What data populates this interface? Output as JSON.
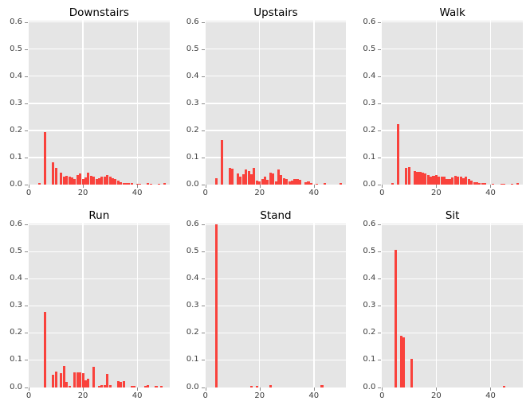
{
  "figure": {
    "background": "#ffffff",
    "axes_background": "#e5e5e5",
    "grid_color": "#ffffff",
    "bar_color": "#f9423c",
    "tick_label_color": "#3c3c3c",
    "title_color": "#000000"
  },
  "chart_data": [
    {
      "type": "bar",
      "title": "Downstairs",
      "xlabel": "",
      "ylabel": "",
      "xlim": [
        0,
        52
      ],
      "ylim": [
        0,
        0.605
      ],
      "grid": true,
      "legend": false,
      "bin_width": 1,
      "xticks": [
        {
          "value": 0,
          "label": "0"
        },
        {
          "value": 20,
          "label": "20"
        },
        {
          "value": 40,
          "label": "40"
        }
      ],
      "yticks": [
        {
          "value": 0.0,
          "label": "0.0"
        },
        {
          "value": 0.1,
          "label": "0.1"
        },
        {
          "value": 0.2,
          "label": "0.2"
        },
        {
          "value": 0.3,
          "label": "0.3"
        },
        {
          "value": 0.4,
          "label": "0.4"
        },
        {
          "value": 0.5,
          "label": "0.5"
        },
        {
          "value": 0.6,
          "label": "0.6"
        }
      ],
      "bars": [
        [
          4,
          0.006
        ],
        [
          6,
          0.195
        ],
        [
          9,
          0.083
        ],
        [
          10,
          0.062
        ],
        [
          12,
          0.045
        ],
        [
          13,
          0.03
        ],
        [
          14,
          0.031
        ],
        [
          15,
          0.028
        ],
        [
          16,
          0.026
        ],
        [
          17,
          0.02
        ],
        [
          18,
          0.035
        ],
        [
          19,
          0.042
        ],
        [
          20,
          0.02
        ],
        [
          21,
          0.026
        ],
        [
          22,
          0.044
        ],
        [
          23,
          0.033
        ],
        [
          24,
          0.028
        ],
        [
          25,
          0.02
        ],
        [
          26,
          0.024
        ],
        [
          27,
          0.029
        ],
        [
          28,
          0.03
        ],
        [
          29,
          0.035
        ],
        [
          30,
          0.03
        ],
        [
          31,
          0.024
        ],
        [
          32,
          0.02
        ],
        [
          33,
          0.014
        ],
        [
          34,
          0.01
        ],
        [
          35,
          0.007
        ],
        [
          36,
          0.006
        ],
        [
          37,
          0.005
        ],
        [
          38,
          0.005
        ],
        [
          40,
          0.004
        ],
        [
          41,
          0.004
        ],
        [
          44,
          0.005
        ],
        [
          45,
          0.003
        ],
        [
          48,
          0.004
        ],
        [
          50,
          0.006
        ]
      ]
    },
    {
      "type": "bar",
      "title": "Upstairs",
      "xlabel": "",
      "ylabel": "",
      "xlim": [
        0,
        52
      ],
      "ylim": [
        0,
        0.605
      ],
      "grid": true,
      "legend": false,
      "bin_width": 1,
      "xticks": [
        {
          "value": 0,
          "label": "0"
        },
        {
          "value": 20,
          "label": "20"
        },
        {
          "value": 40,
          "label": "40"
        }
      ],
      "yticks": [
        {
          "value": 0.0,
          "label": "0.0"
        },
        {
          "value": 0.1,
          "label": "0.1"
        },
        {
          "value": 0.2,
          "label": "0.2"
        },
        {
          "value": 0.3,
          "label": "0.3"
        },
        {
          "value": 0.4,
          "label": "0.4"
        },
        {
          "value": 0.5,
          "label": "0.5"
        },
        {
          "value": 0.6,
          "label": "0.6"
        }
      ],
      "bars": [
        [
          4,
          0.023
        ],
        [
          6,
          0.165
        ],
        [
          9,
          0.063
        ],
        [
          10,
          0.06
        ],
        [
          12,
          0.04
        ],
        [
          13,
          0.03
        ],
        [
          14,
          0.038
        ],
        [
          15,
          0.055
        ],
        [
          16,
          0.05
        ],
        [
          17,
          0.038
        ],
        [
          18,
          0.063
        ],
        [
          19,
          0.015
        ],
        [
          20,
          0.012
        ],
        [
          21,
          0.02
        ],
        [
          22,
          0.028
        ],
        [
          23,
          0.018
        ],
        [
          24,
          0.045
        ],
        [
          25,
          0.04
        ],
        [
          26,
          0.012
        ],
        [
          27,
          0.055
        ],
        [
          28,
          0.035
        ],
        [
          29,
          0.025
        ],
        [
          30,
          0.022
        ],
        [
          31,
          0.012
        ],
        [
          32,
          0.015
        ],
        [
          33,
          0.02
        ],
        [
          34,
          0.022
        ],
        [
          35,
          0.018
        ],
        [
          37,
          0.008
        ],
        [
          38,
          0.012
        ],
        [
          39,
          0.006
        ],
        [
          41,
          0.004
        ],
        [
          44,
          0.005
        ],
        [
          50,
          0.006
        ]
      ]
    },
    {
      "type": "bar",
      "title": "Walk",
      "xlabel": "",
      "ylabel": "",
      "xlim": [
        0,
        52
      ],
      "ylim": [
        0,
        0.605
      ],
      "grid": true,
      "legend": false,
      "bin_width": 1,
      "xticks": [
        {
          "value": 0,
          "label": "0"
        },
        {
          "value": 20,
          "label": "20"
        },
        {
          "value": 40,
          "label": "40"
        }
      ],
      "yticks": [
        {
          "value": 0.0,
          "label": "0.0"
        },
        {
          "value": 0.1,
          "label": "0.1"
        },
        {
          "value": 0.2,
          "label": "0.2"
        },
        {
          "value": 0.3,
          "label": "0.3"
        },
        {
          "value": 0.4,
          "label": "0.4"
        },
        {
          "value": 0.5,
          "label": "0.5"
        },
        {
          "value": 0.6,
          "label": "0.6"
        }
      ],
      "bars": [
        [
          4,
          0.006
        ],
        [
          6,
          0.223
        ],
        [
          9,
          0.062
        ],
        [
          10,
          0.065
        ],
        [
          12,
          0.05
        ],
        [
          13,
          0.048
        ],
        [
          14,
          0.046
        ],
        [
          15,
          0.044
        ],
        [
          16,
          0.04
        ],
        [
          17,
          0.036
        ],
        [
          18,
          0.03
        ],
        [
          19,
          0.032
        ],
        [
          20,
          0.034
        ],
        [
          21,
          0.03
        ],
        [
          22,
          0.03
        ],
        [
          23,
          0.028
        ],
        [
          24,
          0.02
        ],
        [
          25,
          0.022
        ],
        [
          26,
          0.026
        ],
        [
          27,
          0.032
        ],
        [
          28,
          0.03
        ],
        [
          29,
          0.028
        ],
        [
          30,
          0.024
        ],
        [
          31,
          0.03
        ],
        [
          32,
          0.022
        ],
        [
          33,
          0.016
        ],
        [
          34,
          0.01
        ],
        [
          35,
          0.008
        ],
        [
          36,
          0.006
        ],
        [
          37,
          0.006
        ],
        [
          38,
          0.005
        ],
        [
          41,
          0.004
        ],
        [
          44,
          0.004
        ],
        [
          45,
          0.004
        ],
        [
          48,
          0.004
        ],
        [
          50,
          0.005
        ]
      ]
    },
    {
      "type": "bar",
      "title": "Run",
      "xlabel": "",
      "ylabel": "",
      "xlim": [
        0,
        52
      ],
      "ylim": [
        0,
        0.605
      ],
      "grid": true,
      "legend": false,
      "bin_width": 1,
      "xticks": [
        {
          "value": 0,
          "label": "0"
        },
        {
          "value": 20,
          "label": "20"
        },
        {
          "value": 40,
          "label": "40"
        }
      ],
      "yticks": [
        {
          "value": 0.0,
          "label": "0.0"
        },
        {
          "value": 0.1,
          "label": "0.1"
        },
        {
          "value": 0.2,
          "label": "0.2"
        },
        {
          "value": 0.3,
          "label": "0.3"
        },
        {
          "value": 0.4,
          "label": "0.4"
        },
        {
          "value": 0.5,
          "label": "0.5"
        },
        {
          "value": 0.6,
          "label": "0.6"
        }
      ],
      "bars": [
        [
          6,
          0.278
        ],
        [
          9,
          0.045
        ],
        [
          10,
          0.058
        ],
        [
          12,
          0.05
        ],
        [
          13,
          0.077
        ],
        [
          14,
          0.02
        ],
        [
          15,
          0.005
        ],
        [
          17,
          0.053
        ],
        [
          18,
          0.055
        ],
        [
          19,
          0.055
        ],
        [
          20,
          0.05
        ],
        [
          21,
          0.025
        ],
        [
          22,
          0.03
        ],
        [
          24,
          0.076
        ],
        [
          26,
          0.005
        ],
        [
          27,
          0.006
        ],
        [
          28,
          0.008
        ],
        [
          29,
          0.048
        ],
        [
          30,
          0.007
        ],
        [
          33,
          0.022
        ],
        [
          34,
          0.018
        ],
        [
          35,
          0.021
        ],
        [
          38,
          0.004
        ],
        [
          39,
          0.003
        ],
        [
          43,
          0.005
        ],
        [
          44,
          0.008
        ],
        [
          47,
          0.004
        ],
        [
          49,
          0.003
        ]
      ]
    },
    {
      "type": "bar",
      "title": "Stand",
      "xlabel": "",
      "ylabel": "",
      "xlim": [
        0,
        52
      ],
      "ylim": [
        0,
        0.605
      ],
      "grid": true,
      "legend": false,
      "bin_width": 1,
      "xticks": [
        {
          "value": 0,
          "label": "0"
        },
        {
          "value": 20,
          "label": "20"
        },
        {
          "value": 40,
          "label": "40"
        }
      ],
      "yticks": [
        {
          "value": 0.0,
          "label": "0.0"
        },
        {
          "value": 0.1,
          "label": "0.1"
        },
        {
          "value": 0.2,
          "label": "0.2"
        },
        {
          "value": 0.3,
          "label": "0.3"
        },
        {
          "value": 0.4,
          "label": "0.4"
        },
        {
          "value": 0.5,
          "label": "0.5"
        },
        {
          "value": 0.6,
          "label": "0.6"
        }
      ],
      "bars": [
        [
          4,
          0.6
        ],
        [
          17,
          0.005
        ],
        [
          19,
          0.004
        ],
        [
          24,
          0.008
        ],
        [
          43,
          0.008
        ]
      ]
    },
    {
      "type": "bar",
      "title": "Sit",
      "xlabel": "",
      "ylabel": "",
      "xlim": [
        0,
        52
      ],
      "ylim": [
        0,
        0.605
      ],
      "grid": true,
      "legend": false,
      "bin_width": 1,
      "xticks": [
        {
          "value": 0,
          "label": "0"
        },
        {
          "value": 20,
          "label": "20"
        },
        {
          "value": 40,
          "label": "40"
        }
      ],
      "yticks": [
        {
          "value": 0.0,
          "label": "0.0"
        },
        {
          "value": 0.1,
          "label": "0.1"
        },
        {
          "value": 0.2,
          "label": "0.2"
        },
        {
          "value": 0.3,
          "label": "0.3"
        },
        {
          "value": 0.4,
          "label": "0.4"
        },
        {
          "value": 0.5,
          "label": "0.5"
        },
        {
          "value": 0.6,
          "label": "0.6"
        }
      ],
      "bars": [
        [
          5,
          0.508
        ],
        [
          7,
          0.19
        ],
        [
          8,
          0.185
        ],
        [
          11,
          0.105
        ],
        [
          45,
          0.005
        ]
      ]
    }
  ]
}
